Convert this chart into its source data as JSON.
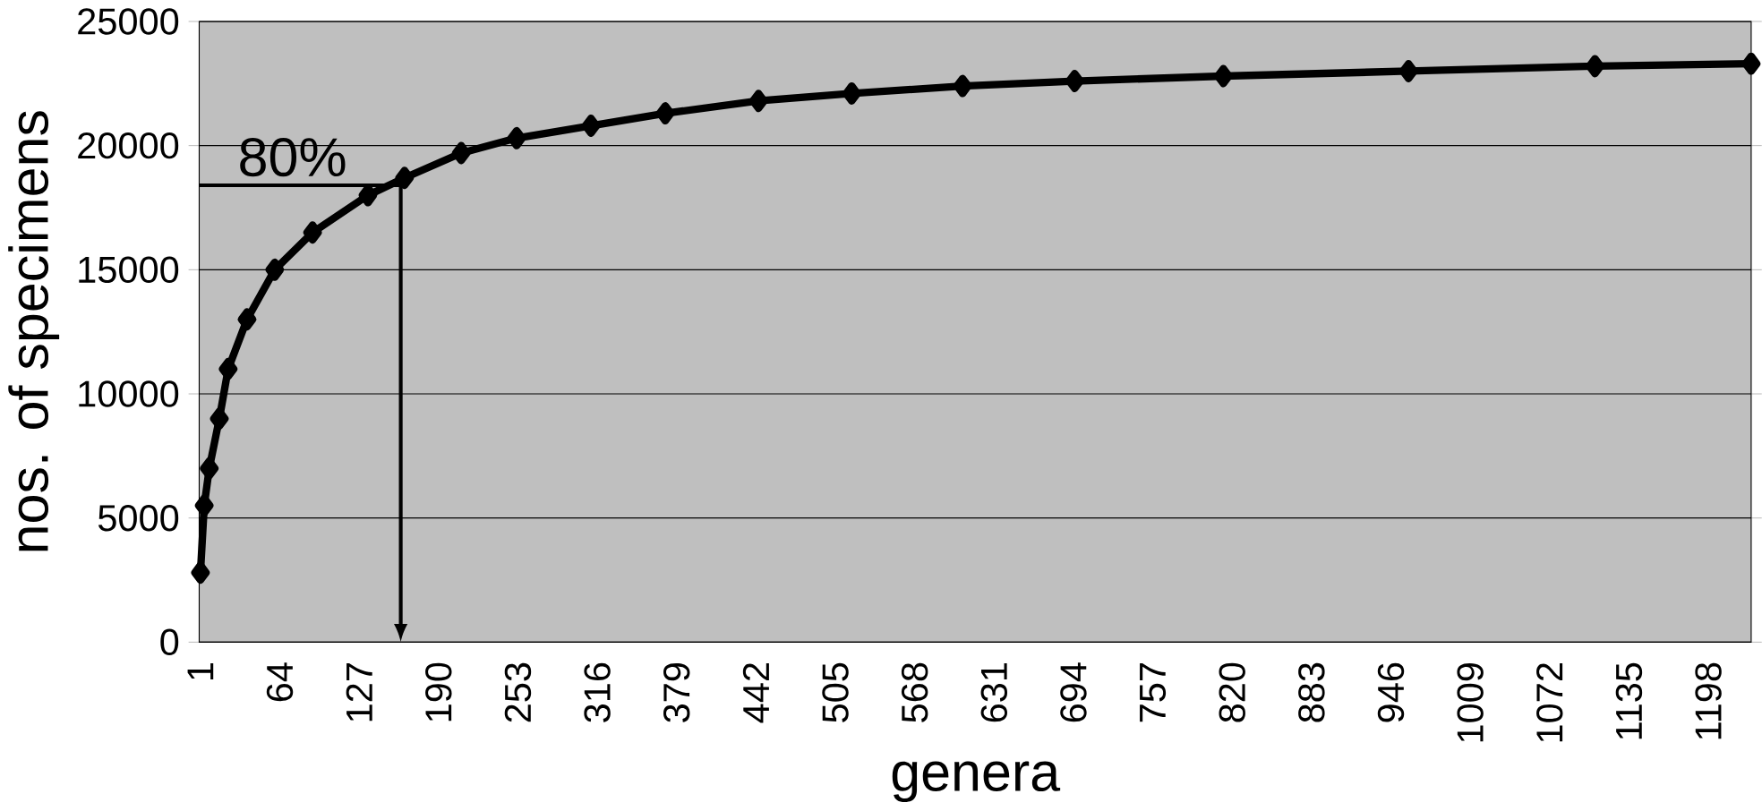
{
  "chart_data": {
    "type": "line",
    "xlabel": "genera",
    "ylabel": "nos. of specimens",
    "x": [
      1,
      4,
      8,
      16,
      23,
      38,
      60,
      90,
      134,
      163,
      208,
      252,
      311,
      370,
      444,
      518,
      606,
      695,
      813,
      960,
      1108,
      1232
    ],
    "values": [
      2800,
      5500,
      7000,
      9000,
      11000,
      13000,
      15000,
      16500,
      18000,
      18700,
      19700,
      20300,
      20800,
      21300,
      21800,
      22100,
      22400,
      22600,
      22800,
      23000,
      23200,
      23300
    ],
    "color": "#000000",
    "marker": "diamond",
    "line_style": "solid",
    "grid": "y",
    "xlim": [
      0,
      1232
    ],
    "ylim": [
      0,
      25000
    ],
    "xticks": [
      1,
      64,
      127,
      190,
      253,
      316,
      379,
      442,
      505,
      568,
      631,
      694,
      757,
      820,
      883,
      946,
      1009,
      1072,
      1135,
      1198
    ],
    "yticks": [
      0,
      5000,
      10000,
      15000,
      20000,
      25000
    ],
    "annotations": [
      {
        "text": "80%",
        "x": 160,
        "y": 18400
      }
    ]
  }
}
